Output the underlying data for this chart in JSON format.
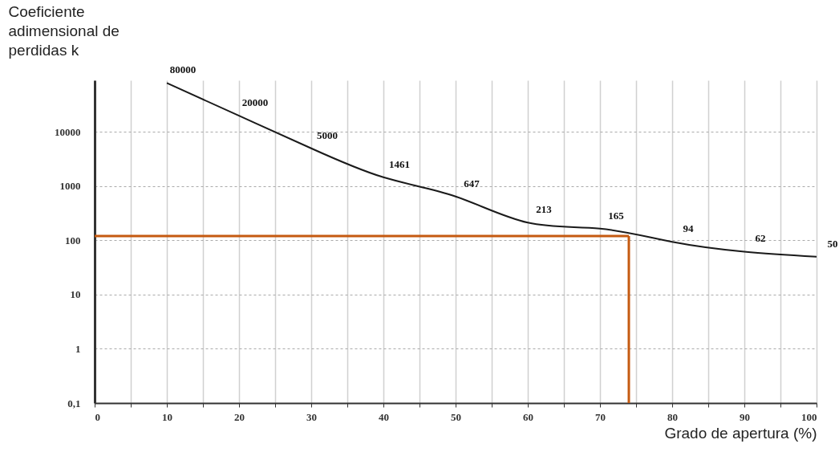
{
  "chart_data": {
    "type": "line",
    "ylabel": "Coeficiente adimensional de perdidas k",
    "xlabel": "Grado de apertura (%)",
    "x": [
      10,
      20,
      30,
      40,
      50,
      60,
      70,
      80,
      90,
      100
    ],
    "series": [
      {
        "color": "#1a1a1a",
        "values": [
          80000,
          20000,
          5000,
          1461,
          647,
          213,
          165,
          94,
          62,
          50
        ]
      }
    ],
    "data_labels": true,
    "log": true,
    "grid": true,
    "marker": "none",
    "line_style": "solid",
    "xlim": [
      0,
      100
    ],
    "xticks": [
      0,
      {
        "value": 5,
        "label": null
      },
      10,
      {
        "value": 15,
        "label": null
      },
      20,
      {
        "value": 25,
        "label": null
      },
      30,
      {
        "value": 35,
        "label": null
      },
      40,
      {
        "value": 45,
        "label": null
      },
      50,
      {
        "value": 55,
        "label": null
      },
      60,
      {
        "value": 65,
        "label": null
      },
      70,
      {
        "value": 75,
        "label": null
      },
      80,
      {
        "value": 85,
        "label": null
      },
      90,
      {
        "value": 95,
        "label": null
      },
      100
    ],
    "ylim": [
      0.1,
      90000
    ],
    "yticks": [
      {
        "value": 0.1,
        "label": "0,1"
      },
      1,
      10,
      100,
      1000,
      10000
    ],
    "ref_lines": [
      {
        "axis": "y",
        "value": 120,
        "color": "#c55a11"
      },
      {
        "axis": "x",
        "value": 74,
        "color": "#c55a11"
      }
    ]
  }
}
